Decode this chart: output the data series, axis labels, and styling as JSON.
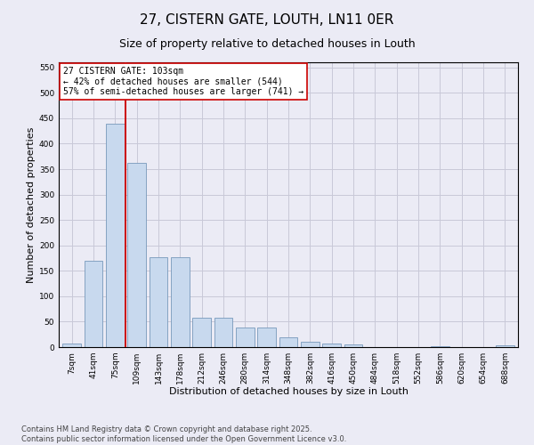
{
  "title": "27, CISTERN GATE, LOUTH, LN11 0ER",
  "subtitle": "Size of property relative to detached houses in Louth",
  "xlabel": "Distribution of detached houses by size in Louth",
  "ylabel": "Number of detached properties",
  "categories": [
    "7sqm",
    "41sqm",
    "75sqm",
    "109sqm",
    "143sqm",
    "178sqm",
    "212sqm",
    "246sqm",
    "280sqm",
    "314sqm",
    "348sqm",
    "382sqm",
    "416sqm",
    "450sqm",
    "484sqm",
    "518sqm",
    "552sqm",
    "586sqm",
    "620sqm",
    "654sqm",
    "688sqm"
  ],
  "values": [
    7,
    170,
    440,
    363,
    176,
    176,
    57,
    57,
    38,
    38,
    20,
    10,
    7,
    5,
    0,
    0,
    0,
    2,
    0,
    0,
    3
  ],
  "bar_color": "#c8d9ee",
  "bar_edge_color": "#7799bb",
  "grid_color": "#c8c8d8",
  "background_color": "#ebebf5",
  "vline_color": "#cc0000",
  "annotation_text": "27 CISTERN GATE: 103sqm\n← 42% of detached houses are smaller (544)\n57% of semi-detached houses are larger (741) →",
  "annotation_box_facecolor": "#ffffff",
  "annotation_box_edgecolor": "#cc0000",
  "ylim": [
    0,
    560
  ],
  "yticks": [
    0,
    50,
    100,
    150,
    200,
    250,
    300,
    350,
    400,
    450,
    500,
    550
  ],
  "footer": "Contains HM Land Registry data © Crown copyright and database right 2025.\nContains public sector information licensed under the Open Government Licence v3.0.",
  "title_fontsize": 11,
  "subtitle_fontsize": 9,
  "xlabel_fontsize": 8,
  "ylabel_fontsize": 8,
  "tick_fontsize": 6.5,
  "annotation_fontsize": 7,
  "footer_fontsize": 6,
  "vline_xindex": 2.5,
  "bar_width": 0.85
}
